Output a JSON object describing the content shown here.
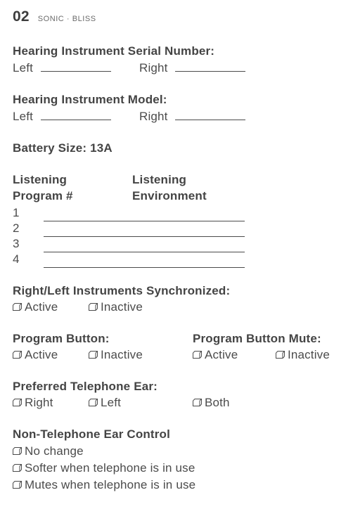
{
  "header": {
    "page_number": "02",
    "brand": "SONIC · BLISS"
  },
  "serial": {
    "heading": "Hearing Instrument Serial Number:",
    "left_label": "Left",
    "right_label": "Right"
  },
  "model": {
    "heading": "Hearing Instrument Model:",
    "left_label": "Left",
    "right_label": "Right"
  },
  "battery": {
    "text": "Battery Size: 13A"
  },
  "programs": {
    "col1_l1": "Listening",
    "col1_l2": "Program #",
    "col2_l1": "Listening",
    "col2_l2": "Environment",
    "rows": [
      "1",
      "2",
      "3",
      "4"
    ]
  },
  "sync": {
    "heading": "Right/Left Instruments Synchronized:",
    "opt_active": "Active",
    "opt_inactive": "Inactive"
  },
  "prog_button": {
    "heading": "Program Button:",
    "mute_heading": "Program Button Mute:",
    "opt_active": "Active",
    "opt_inactive": "Inactive"
  },
  "phone_ear": {
    "heading": "Preferred Telephone Ear:",
    "opt_right": "Right",
    "opt_left": "Left",
    "opt_both": "Both"
  },
  "non_tel": {
    "heading": "Non-Telephone Ear Control",
    "opt_nochange": "No change",
    "opt_softer": "Softer when telephone is in use",
    "opt_mutes": "Mutes when telephone is in use"
  },
  "checkbox_svg": {
    "stroke": "#4b4b4b",
    "stroke_width": 1
  }
}
